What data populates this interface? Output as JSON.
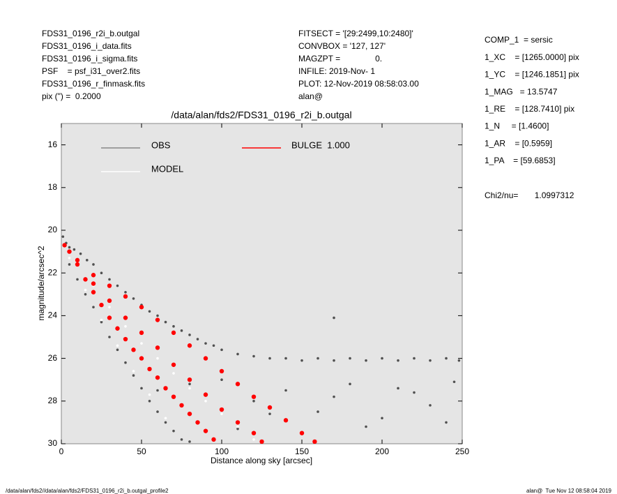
{
  "chart_data": {
    "type": "scatter",
    "title": "/data/alan/fds2/FDS31_0196_r2i_b.outgal",
    "x_label": "Distance along sky [arcsec]",
    "y_label": "magnitude/arcsec^2",
    "header_left": [
      "FDS31_0196_r2i_b.outgal",
      "FDS31_0196_i_data.fits",
      "FDS31_0196_i_sigma.fits",
      "PSF    = psf_i31_over2.fits",
      "FDS31_0196_r_finmask.fits",
      "pix (\") =  0.2000"
    ],
    "header_mid": [
      "FITSECT = '[29:2499,10:2480]'",
      "CONVBOX = '127, 127'",
      "MAGZPT =               0.",
      "INFILE: 2019-Nov- 1",
      "PLOT: 12-Nov-2019 08:58:03.00",
      "alan@"
    ],
    "params": [
      "COMP_1  = sersic",
      "1_XC    = [1265.0000] pix",
      "1_YC    = [1246.1851] pix",
      "1_MAG   = 13.5747",
      "1_RE    = [128.7410] pix",
      "1_N     = [1.4600]",
      "1_AR    = [0.5959]",
      "1_PA    = [59.6853]"
    ],
    "chi2": "Chi2/nu=       1.0997312",
    "footer_left": "/data/alan/fds2//data/alan/fds2/FDS31_0196_r2i_b.outgal_profile2",
    "footer_right": "alan@  Tue Nov 12 08:58:04 2019",
    "xlim": [
      0,
      250
    ],
    "ylim": [
      15,
      30
    ],
    "y_reversed": true,
    "xticks": [
      0,
      50,
      100,
      150,
      200,
      250
    ],
    "yticks": [
      16,
      18,
      20,
      22,
      24,
      26,
      28,
      30
    ],
    "series": [
      {
        "name": "OBS",
        "color": "#505050",
        "x": [
          1,
          3,
          5,
          8,
          12,
          16,
          20,
          25,
          30,
          35,
          40,
          45,
          50,
          55,
          60,
          65,
          70,
          75,
          80,
          85,
          90,
          95,
          100,
          110,
          120,
          130,
          140,
          150,
          160,
          170,
          180,
          190,
          200,
          210,
          220,
          230,
          240,
          248,
          5,
          10,
          15,
          20,
          25,
          30,
          35,
          40,
          45,
          50,
          55,
          60,
          65,
          70,
          75,
          80,
          60,
          80,
          100,
          120,
          140,
          160,
          180,
          200,
          220,
          240,
          110,
          130,
          150,
          170,
          190,
          210,
          230,
          245,
          170
        ],
        "values": [
          20.3,
          20.6,
          20.8,
          20.9,
          21.1,
          21.4,
          21.6,
          22.0,
          22.3,
          22.6,
          22.9,
          23.2,
          23.5,
          23.8,
          24.0,
          24.3,
          24.5,
          24.7,
          24.9,
          25.1,
          25.3,
          25.4,
          25.6,
          25.8,
          25.9,
          26.0,
          26.0,
          26.1,
          26.0,
          26.1,
          26.0,
          26.1,
          26.0,
          26.1,
          26.0,
          26.1,
          26.0,
          26.1,
          21.6,
          22.3,
          23.0,
          23.6,
          24.3,
          25.0,
          25.6,
          26.2,
          26.8,
          27.4,
          28.0,
          28.5,
          29.0,
          29.4,
          29.8,
          29.9,
          27.5,
          27.2,
          27.0,
          28.0,
          27.5,
          28.5,
          27.2,
          28.8,
          27.6,
          29.0,
          29.3,
          28.6,
          29.5,
          27.8,
          29.2,
          27.4,
          28.2,
          27.1,
          24.1
        ]
      },
      {
        "name": "MODEL",
        "color": "#ffffff",
        "x": [
          2,
          10,
          20,
          30,
          40,
          50,
          60,
          70,
          80,
          90,
          100,
          110,
          120,
          5,
          15,
          25,
          35,
          45,
          55,
          65
        ],
        "values": [
          20.7,
          21.5,
          22.6,
          23.6,
          24.5,
          25.3,
          26.0,
          26.7,
          27.4,
          28.0,
          28.6,
          29.2,
          29.8,
          21.3,
          22.8,
          24.2,
          25.4,
          26.6,
          27.7,
          28.8
        ]
      },
      {
        "name": "BULGE  1.000",
        "color": "#ff0000",
        "x": [
          2,
          10,
          20,
          30,
          40,
          50,
          60,
          70,
          80,
          90,
          100,
          110,
          120,
          130,
          140,
          150,
          158,
          5,
          10,
          15,
          20,
          25,
          30,
          35,
          40,
          45,
          50,
          55,
          60,
          65,
          70,
          75,
          80,
          85,
          90,
          95,
          20,
          30,
          40,
          50,
          60,
          70,
          80,
          90,
          100,
          110,
          120,
          125
        ],
        "values": [
          20.7,
          21.4,
          22.1,
          22.6,
          23.1,
          23.6,
          24.2,
          24.8,
          25.4,
          26.0,
          26.6,
          27.2,
          27.8,
          28.3,
          28.9,
          29.5,
          29.9,
          21.0,
          21.6,
          22.3,
          22.9,
          23.5,
          24.1,
          24.6,
          25.1,
          25.6,
          26.0,
          26.5,
          26.9,
          27.4,
          27.8,
          28.2,
          28.6,
          29.0,
          29.4,
          29.8,
          22.5,
          23.3,
          24.1,
          24.8,
          25.5,
          26.3,
          27.0,
          27.7,
          28.4,
          29.0,
          29.5,
          29.9
        ]
      }
    ]
  }
}
